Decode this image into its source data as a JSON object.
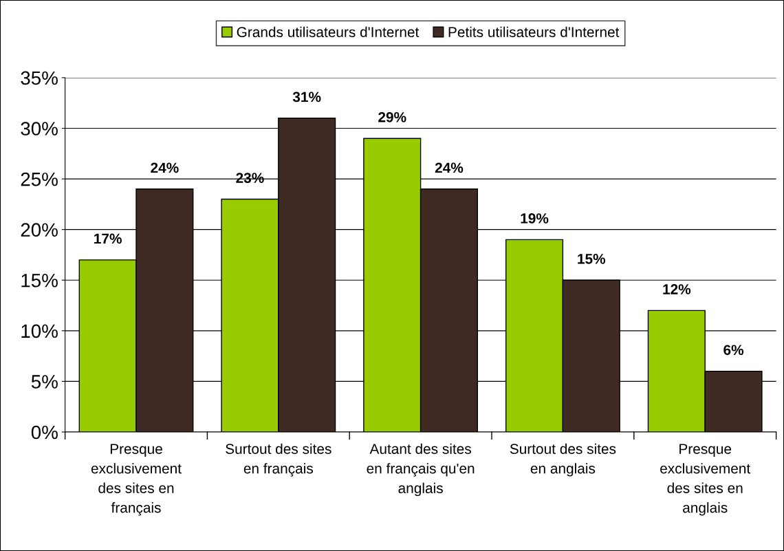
{
  "chart_data": {
    "type": "bar",
    "categories": [
      "Presque\nexclusivement\ndes sites en\nfrançais",
      "Surtout des sites\nen français",
      "Autant des sites\nen français qu'en\nanglais",
      "Surtout des sites\nen anglais",
      "Presque\nexclusivement\ndes sites en\nanglais"
    ],
    "series": [
      {
        "name": "Grands utilisateurs d'Internet",
        "color": "#99cc00",
        "values": [
          17,
          23,
          29,
          19,
          12
        ],
        "value_labels": [
          "17%",
          "23%",
          "29%",
          "19%",
          "12%"
        ]
      },
      {
        "name": "Petits utilisateurs d'Internet",
        "color": "#3f2b24",
        "values": [
          24,
          31,
          24,
          15,
          6
        ],
        "value_labels": [
          "24%",
          "31%",
          "24%",
          "15%",
          "6%"
        ]
      }
    ],
    "ylim": [
      0,
      35
    ],
    "yticks": [
      {
        "value": 0,
        "label": "0%"
      },
      {
        "value": 5,
        "label": "5%"
      },
      {
        "value": 10,
        "label": "10%"
      },
      {
        "value": 15,
        "label": "15%"
      },
      {
        "value": 20,
        "label": "20%"
      },
      {
        "value": 25,
        "label": "25%"
      },
      {
        "value": 30,
        "label": "30%"
      },
      {
        "value": 35,
        "label": "35%"
      }
    ],
    "grid": "y",
    "legend": "top"
  }
}
